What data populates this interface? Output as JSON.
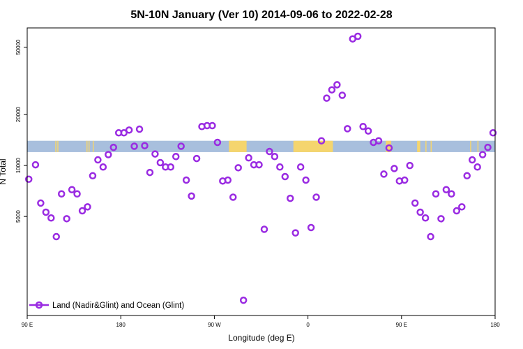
{
  "chart_data": {
    "type": "scatter",
    "title": "5N-10N January (Ver 10)   2014-09-06 to 2022-02-28",
    "xlabel": "Longitude (deg E)",
    "ylabel": "N Total",
    "x_ticks": [
      {
        "value": 90,
        "label": "90 E"
      },
      {
        "value": 180,
        "label": "180"
      },
      {
        "value": 270,
        "label": "90 W"
      },
      {
        "value": 360,
        "label": "0"
      },
      {
        "value": 450,
        "label": "90 E"
      },
      {
        "value": 540,
        "label": "180"
      }
    ],
    "y_ticks": [
      5000,
      10000,
      20000,
      50000
    ],
    "xlim": [
      90,
      540
    ],
    "ylim": [
      1300,
      65000
    ],
    "y_scale": "log",
    "legend_position": "bottom-left",
    "background_strip": {
      "y_range": [
        12000,
        14000
      ],
      "ocean_color": "#a8bfdd",
      "land_color": "#f5d56e",
      "land_segments": [
        [
          117,
          118
        ],
        [
          119,
          120
        ],
        [
          147,
          148
        ],
        [
          149,
          150
        ],
        [
          153,
          154
        ],
        [
          284,
          301
        ],
        [
          346,
          384
        ],
        [
          435,
          440
        ],
        [
          465,
          468
        ],
        [
          473,
          474
        ],
        [
          478,
          479
        ],
        [
          516,
          517
        ],
        [
          523,
          524
        ]
      ]
    },
    "series": [
      {
        "name": "Land (Nadir&Glint) and Ocean (Glint)",
        "color": "#9a2be2",
        "x": [
          91.5,
          98,
          103,
          108,
          113,
          118,
          123,
          128,
          133,
          138,
          143,
          148,
          153,
          158,
          163,
          168,
          173,
          178,
          183,
          188,
          193,
          198,
          203,
          208,
          213,
          218,
          223,
          228,
          233,
          238,
          243,
          248,
          253,
          258,
          263,
          268,
          273,
          278,
          283,
          288,
          293,
          298,
          303,
          308,
          313,
          318,
          323,
          328,
          333,
          338,
          343,
          348,
          353,
          358,
          363,
          368,
          373,
          378,
          383,
          388,
          393,
          398,
          403,
          408,
          413,
          418,
          423,
          428,
          433,
          438,
          443,
          448,
          453,
          458,
          463,
          468,
          473,
          478,
          483,
          488,
          493,
          498,
          503,
          508,
          513,
          518,
          523,
          528,
          533,
          538
        ],
        "y": [
          8300,
          10100,
          6000,
          5300,
          4900,
          3800,
          6800,
          4850,
          7200,
          6800,
          5400,
          5700,
          8700,
          10800,
          9800,
          11600,
          12800,
          15600,
          15600,
          16200,
          13000,
          16400,
          13100,
          9100,
          11700,
          10400,
          9800,
          9800,
          11300,
          13000,
          8200,
          6600,
          11000,
          17000,
          17200,
          17200,
          13700,
          8100,
          8200,
          6500,
          9700,
          1600,
          11100,
          10100,
          10100,
          4200,
          12100,
          11300,
          9800,
          8600,
          6400,
          4000,
          9800,
          8200,
          4300,
          6500,
          14000,
          25000,
          28000,
          30000,
          26000,
          16500,
          56000,
          58000,
          17000,
          16000,
          13700,
          14000,
          8900,
          12700,
          9600,
          8100,
          8200,
          10000,
          6000,
          5300,
          4900,
          3800,
          6800,
          4850,
          7200,
          6800,
          5400,
          5700,
          8700,
          10800,
          9800,
          11600,
          12800,
          15600
        ]
      }
    ]
  }
}
